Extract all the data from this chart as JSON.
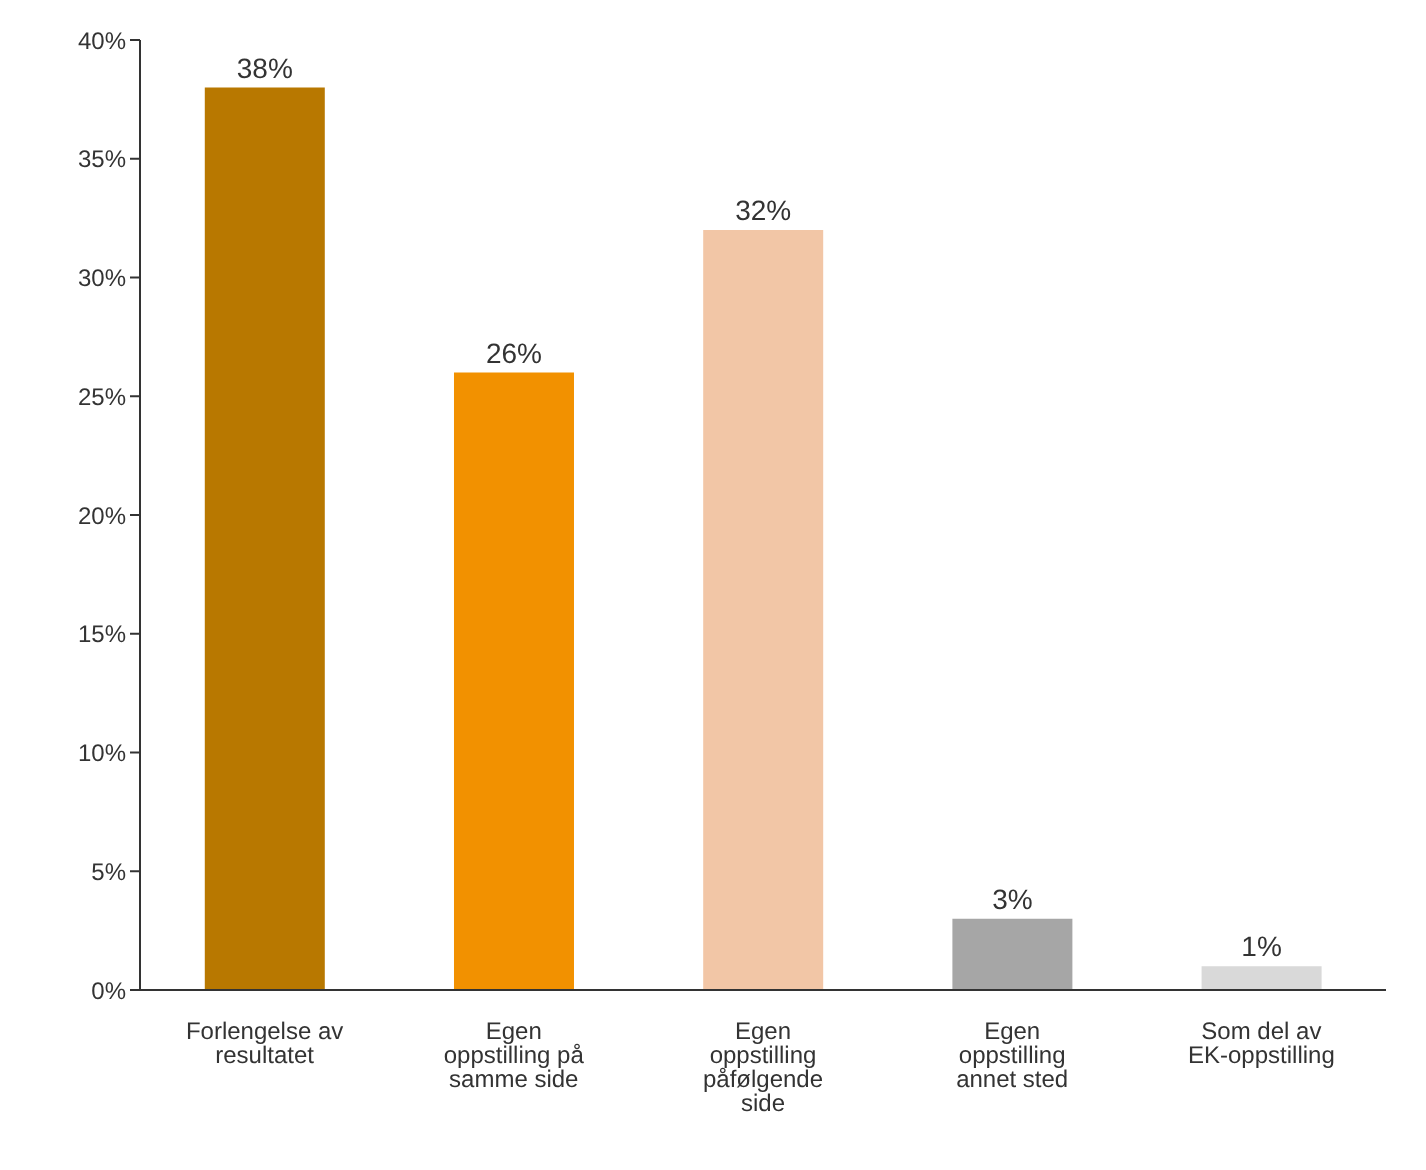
{
  "chart_data": {
    "type": "bar",
    "categories": [
      "Forlengelse av resultatet",
      "Egen oppstilling på samme side",
      "Egen oppstilling påfølgende side",
      "Egen oppstilling annet sted",
      "Som del av EK-oppstilling"
    ],
    "values": [
      38,
      26,
      32,
      3,
      1
    ],
    "colors": [
      "#b87800",
      "#f29100",
      "#f2c6a6",
      "#a6a6a6",
      "#d9d9d9"
    ],
    "value_labels": [
      "38%",
      "26%",
      "32%",
      "3%",
      "1%"
    ],
    "ylim": [
      0,
      40
    ],
    "yticks": [
      {
        "value": 0,
        "label": "0%"
      },
      {
        "value": 5,
        "label": "5%"
      },
      {
        "value": 10,
        "label": "10%"
      },
      {
        "value": 15,
        "label": "15%"
      },
      {
        "value": 20,
        "label": "20%"
      },
      {
        "value": 25,
        "label": "25%"
      },
      {
        "value": 30,
        "label": "30%"
      },
      {
        "value": 35,
        "label": "35%"
      },
      {
        "value": 40,
        "label": "40%"
      }
    ],
    "grid": false
  }
}
